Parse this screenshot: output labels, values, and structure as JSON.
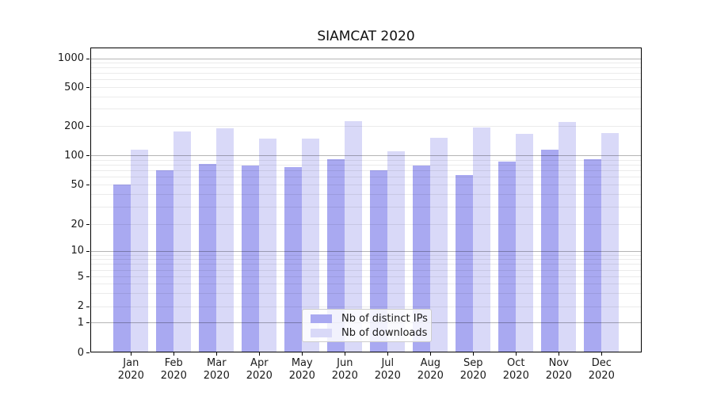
{
  "title": "SIAMCAT 2020",
  "chart_data": {
    "type": "bar",
    "title": "SIAMCAT 2020",
    "xlabel": "",
    "ylabel": "",
    "yscale": "symlog",
    "ylim": [
      0,
      1300
    ],
    "grid": true,
    "legend_position": "lower center",
    "y_ticks": [
      0,
      1,
      2,
      5,
      10,
      20,
      50,
      100,
      200,
      500,
      1000
    ],
    "categories": [
      {
        "month": "Jan",
        "year": "2020"
      },
      {
        "month": "Feb",
        "year": "2020"
      },
      {
        "month": "Mar",
        "year": "2020"
      },
      {
        "month": "Apr",
        "year": "2020"
      },
      {
        "month": "May",
        "year": "2020"
      },
      {
        "month": "Jun",
        "year": "2020"
      },
      {
        "month": "Jul",
        "year": "2020"
      },
      {
        "month": "Aug",
        "year": "2020"
      },
      {
        "month": "Sep",
        "year": "2020"
      },
      {
        "month": "Oct",
        "year": "2020"
      },
      {
        "month": "Nov",
        "year": "2020"
      },
      {
        "month": "Dec",
        "year": "2020"
      }
    ],
    "series": [
      {
        "name": "Nb of distinct IPs",
        "color": "#a9a9f1",
        "values": [
          50,
          70,
          82,
          78,
          76,
          91,
          70,
          79,
          63,
          87,
          115,
          92
        ]
      },
      {
        "name": "Nb of downloads",
        "color": "#d9d9f8",
        "values": [
          115,
          175,
          190,
          148,
          148,
          225,
          110,
          152,
          192,
          166,
          218,
          168
        ]
      }
    ]
  }
}
